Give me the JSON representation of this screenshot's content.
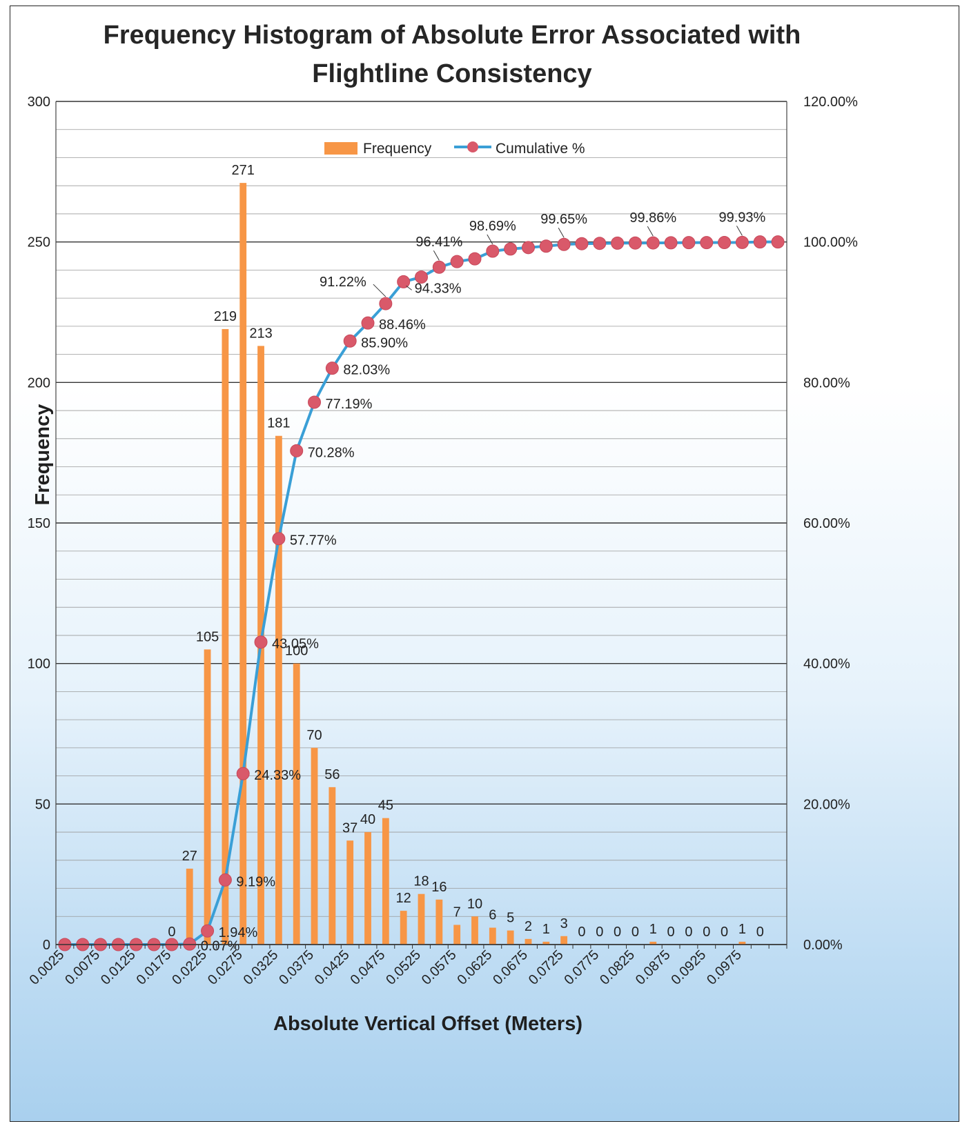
{
  "chart_data": {
    "type": "bar",
    "title": "Frequency Histogram of Absolute Error Associated with Flightline Consistency",
    "xlabel": "Absolute Vertical Offset (Meters)",
    "ylabel": "Frequency",
    "ylim": [
      0,
      300
    ],
    "y2lim": [
      0,
      1.2
    ],
    "yticks": [
      "0",
      "50",
      "100",
      "150",
      "200",
      "250",
      "300"
    ],
    "y2ticks": [
      "0.00%",
      "20.00%",
      "40.00%",
      "60.00%",
      "80.00%",
      "100.00%",
      "120.00%"
    ],
    "grid": true,
    "legend_position": "top-center",
    "categories": [
      "0.0025",
      "0.005",
      "0.0075",
      "0.01",
      "0.0125",
      "0.015",
      "0.0175",
      "0.02",
      "0.0225",
      "0.025",
      "0.0275",
      "0.03",
      "0.0325",
      "0.035",
      "0.0375",
      "0.04",
      "0.0425",
      "0.045",
      "0.0475",
      "0.05",
      "0.0525",
      "0.055",
      "0.0575",
      "0.06",
      "0.0625",
      "0.065",
      "0.0675",
      "0.07",
      "0.0725",
      "0.075",
      "0.0775",
      "0.08",
      "0.0825",
      "0.085",
      "0.0875",
      "0.09",
      "0.0925",
      "0.095",
      "0.0975",
      "0.1",
      "0.1025"
    ],
    "category_labels": [
      "0.0025",
      "",
      "0.0075",
      "",
      "0.0125",
      "",
      "0.0175",
      "",
      "0.0225",
      "",
      "0.0275",
      "",
      "0.0325",
      "",
      "0.0375",
      "",
      "0.0425",
      "",
      "0.0475",
      "",
      "0.0525",
      "",
      "0.0575",
      "",
      "0.0625",
      "",
      "0.0675",
      "",
      "0.0725",
      "",
      "0.0775",
      "",
      "0.0825",
      "",
      "0.0875",
      "",
      "0.0925",
      "",
      "0.0975",
      "",
      ""
    ],
    "series": [
      {
        "name": "Frequency",
        "type": "bar",
        "color": "#f79646",
        "values": [
          0,
          0,
          0,
          0,
          0,
          0,
          0,
          27,
          105,
          219,
          271,
          213,
          181,
          100,
          70,
          56,
          37,
          40,
          45,
          12,
          18,
          16,
          7,
          10,
          6,
          5,
          2,
          1,
          3,
          0,
          0,
          0,
          0,
          1,
          0,
          0,
          0,
          0,
          1,
          0,
          0
        ],
        "labels": [
          "",
          "",
          "",
          "",
          "",
          "",
          "0",
          "27",
          "105",
          "219",
          "271",
          "213",
          "181",
          "100",
          "70",
          "56",
          "37",
          "40",
          "45",
          "12",
          "18",
          "16",
          "7",
          "10",
          "6",
          "5",
          "2",
          "1",
          "3",
          "0",
          "0",
          "0",
          "0",
          "1",
          "0",
          "0",
          "0",
          "0",
          "1",
          "0",
          ""
        ]
      },
      {
        "name": "Cumulative %",
        "type": "line",
        "axis": "right",
        "color": "#3a9fd6",
        "marker_color": "#d9596a",
        "values": [
          0,
          0,
          0,
          0,
          0,
          0,
          0,
          0.0007,
          0.0194,
          0.0919,
          0.2433,
          0.4305,
          0.5777,
          0.7028,
          0.7719,
          0.8203,
          0.859,
          0.8846,
          0.9122,
          0.9433,
          0.95,
          0.9641,
          0.972,
          0.976,
          0.9869,
          0.99,
          0.992,
          0.994,
          0.9965,
          0.9975,
          0.998,
          0.9983,
          0.9985,
          0.9986,
          0.9988,
          0.999,
          0.999,
          0.9992,
          0.9993,
          1.0,
          1.0
        ],
        "labels": [
          "",
          "",
          "",
          "",
          "",
          "",
          "",
          "0.07%",
          "1.94%",
          "9.19%",
          "24.33%",
          "43.05%",
          "57.77%",
          "70.28%",
          "77.19%",
          "82.03%",
          "85.90%",
          "88.46%",
          "91.22%",
          "94.33%",
          "",
          "96.41%",
          "",
          "",
          "98.69%",
          "",
          "",
          "",
          "99.65%",
          "",
          "",
          "",
          "",
          "99.86%",
          "",
          "",
          "",
          "",
          "99.93%",
          "",
          ""
        ]
      }
    ]
  }
}
